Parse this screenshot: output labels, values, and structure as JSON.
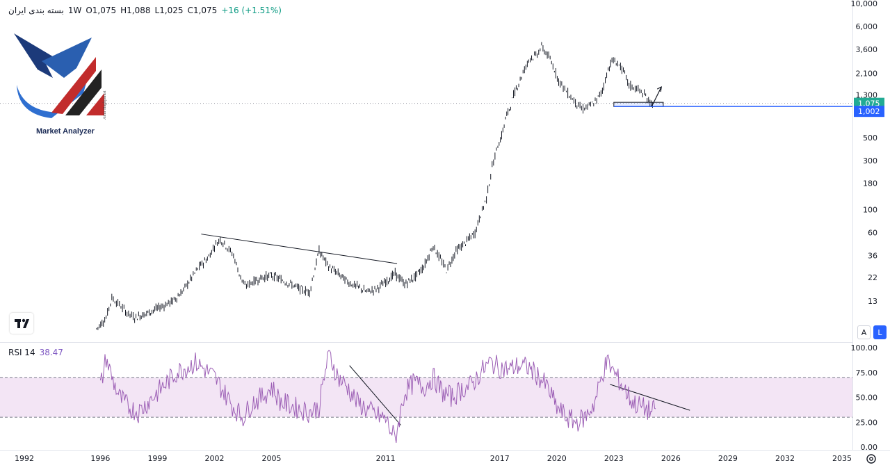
{
  "header": {
    "symbol": "بسته بندی ایران",
    "interval": "1W",
    "open": "O1,075",
    "high": "H1,088",
    "low": "L1,025",
    "close": "C1,075",
    "change": "+16 (+1.51%)"
  },
  "indicator": {
    "name": "RSI 14",
    "value": "38.47"
  },
  "logo": {
    "title": "Market Analyzer",
    "author": "Amir Haghparast"
  },
  "scale_buttons": {
    "auto": "A",
    "log": "L"
  },
  "icons": {
    "brand": "tradingview-logo-icon",
    "settings": "gear-icon"
  },
  "colors": {
    "price": "#131722",
    "last_price_bg": "#22ab94",
    "support_line": "#2962ff",
    "rsi_line": "#9c5fb5",
    "rsi_band": "#f3e5f5",
    "rsi_bound": "#787b86"
  },
  "chart_data": [
    {
      "type": "candlestick",
      "title": "بسته بندی ایران",
      "interval": "1W",
      "y_scale": "log",
      "ylim": [
        6,
        10000
      ],
      "xlim": [
        1992,
        2035.5
      ],
      "y_ticks": [
        "10,000",
        "6,000",
        "3,600",
        "2,100",
        "1,300",
        "500",
        "300",
        "180",
        "100",
        "60",
        "36",
        "22",
        "13"
      ],
      "x_ticks": [
        "1992",
        "1996",
        "1999",
        "2002",
        "2005",
        "2011",
        "2017",
        "2020",
        "2023",
        "2026",
        "2029",
        "2032",
        "2035"
      ],
      "last_price": {
        "value": 1075,
        "label": "1,075"
      },
      "support_level": {
        "value": 1002,
        "label": "1,002"
      },
      "trendlines": [
        {
          "from": [
            2001.3,
            58
          ],
          "to": [
            2011.6,
            30
          ]
        },
        {
          "from": [
            2023.0,
            1050
          ],
          "to": [
            2025.6,
            1050
          ]
        }
      ],
      "arrow": {
        "from": [
          2025.0,
          1010
        ],
        "to": [
          2025.5,
          1550
        ]
      },
      "price_series": [
        [
          1995.8,
          7
        ],
        [
          1996.3,
          9
        ],
        [
          1996.6,
          14
        ],
        [
          1997.0,
          12
        ],
        [
          1997.4,
          10
        ],
        [
          1997.8,
          9
        ],
        [
          1998.5,
          10
        ],
        [
          1999.2,
          11.5
        ],
        [
          1999.8,
          13
        ],
        [
          2000.3,
          16
        ],
        [
          2000.8,
          22
        ],
        [
          2001.2,
          28
        ],
        [
          2001.7,
          35
        ],
        [
          2002.0,
          45
        ],
        [
          2002.3,
          52
        ],
        [
          2002.6,
          45
        ],
        [
          2003.0,
          36
        ],
        [
          2003.3,
          24
        ],
        [
          2003.6,
          18
        ],
        [
          2004.0,
          20
        ],
        [
          2004.5,
          22
        ],
        [
          2005.0,
          23
        ],
        [
          2005.5,
          21
        ],
        [
          2006.0,
          19
        ],
        [
          2006.5,
          17
        ],
        [
          2007.0,
          16
        ],
        [
          2007.5,
          40
        ],
        [
          2008.0,
          28
        ],
        [
          2008.5,
          24
        ],
        [
          2009.0,
          20
        ],
        [
          2009.5,
          18
        ],
        [
          2010.0,
          16
        ],
        [
          2010.5,
          17
        ],
        [
          2011.0,
          20
        ],
        [
          2011.5,
          24
        ],
        [
          2012.0,
          19
        ],
        [
          2012.5,
          22
        ],
        [
          2013.0,
          28
        ],
        [
          2013.5,
          45
        ],
        [
          2013.8,
          35
        ],
        [
          2014.2,
          26
        ],
        [
          2014.7,
          40
        ],
        [
          2015.2,
          48
        ],
        [
          2015.7,
          60
        ],
        [
          2016.0,
          90
        ],
        [
          2016.3,
          130
        ],
        [
          2016.6,
          260
        ],
        [
          2016.9,
          420
        ],
        [
          2017.1,
          520
        ],
        [
          2017.3,
          760
        ],
        [
          2017.5,
          950
        ],
        [
          2017.8,
          1400
        ],
        [
          2018.0,
          1700
        ],
        [
          2018.3,
          2300
        ],
        [
          2018.6,
          3000
        ],
        [
          2018.9,
          3100
        ],
        [
          2019.2,
          3800
        ],
        [
          2019.5,
          3200
        ],
        [
          2019.8,
          2500
        ],
        [
          2020.1,
          1800
        ],
        [
          2020.5,
          1400
        ],
        [
          2020.9,
          1150
        ],
        [
          2021.3,
          950
        ],
        [
          2021.7,
          1000
        ],
        [
          2022.1,
          1150
        ],
        [
          2022.4,
          1450
        ],
        [
          2022.7,
          2300
        ],
        [
          2022.9,
          2800
        ],
        [
          2023.2,
          2650
        ],
        [
          2023.5,
          2200
        ],
        [
          2023.8,
          1600
        ],
        [
          2024.2,
          1500
        ],
        [
          2024.6,
          1300
        ],
        [
          2024.9,
          1100
        ],
        [
          2025.1,
          1075
        ]
      ]
    },
    {
      "type": "line",
      "title": "RSI 14",
      "ylim": [
        0,
        100
      ],
      "y_ticks": [
        "100.00",
        "75.00",
        "50.00",
        "25.00",
        "0.00"
      ],
      "band": [
        30,
        70
      ],
      "last_value": 38.47,
      "trendlines": [
        {
          "from": [
            2009.1,
            82
          ],
          "to": [
            2011.8,
            22
          ]
        },
        {
          "from": [
            2022.8,
            63
          ],
          "to": [
            2027.0,
            37
          ]
        }
      ],
      "series": [
        [
          1996.0,
          60
        ],
        [
          1996.3,
          90
        ],
        [
          1996.6,
          70
        ],
        [
          1997.0,
          50
        ],
        [
          1997.5,
          40
        ],
        [
          1998.0,
          35
        ],
        [
          1998.5,
          45
        ],
        [
          1999.0,
          55
        ],
        [
          1999.5,
          65
        ],
        [
          2000.0,
          75
        ],
        [
          2000.5,
          80
        ],
        [
          2001.0,
          85
        ],
        [
          2001.5,
          78
        ],
        [
          2002.0,
          70
        ],
        [
          2002.5,
          55
        ],
        [
          2003.0,
          40
        ],
        [
          2003.5,
          30
        ],
        [
          2004.0,
          45
        ],
        [
          2004.5,
          50
        ],
        [
          2005.0,
          60
        ],
        [
          2005.5,
          45
        ],
        [
          2006.0,
          42
        ],
        [
          2006.5,
          38
        ],
        [
          2007.0,
          35
        ],
        [
          2007.5,
          40
        ],
        [
          2008.0,
          95
        ],
        [
          2008.5,
          70
        ],
        [
          2009.0,
          60
        ],
        [
          2009.5,
          45
        ],
        [
          2010.0,
          38
        ],
        [
          2010.5,
          32
        ],
        [
          2011.0,
          28
        ],
        [
          2011.5,
          8
        ],
        [
          2012.0,
          55
        ],
        [
          2012.5,
          65
        ],
        [
          2013.0,
          60
        ],
        [
          2013.5,
          70
        ],
        [
          2014.0,
          55
        ],
        [
          2014.5,
          50
        ],
        [
          2015.0,
          58
        ],
        [
          2015.5,
          62
        ],
        [
          2016.0,
          75
        ],
        [
          2016.5,
          85
        ],
        [
          2017.0,
          80
        ],
        [
          2017.5,
          78
        ],
        [
          2018.0,
          82
        ],
        [
          2018.5,
          80
        ],
        [
          2019.0,
          72
        ],
        [
          2019.5,
          60
        ],
        [
          2020.0,
          40
        ],
        [
          2020.5,
          30
        ],
        [
          2021.0,
          25
        ],
        [
          2021.5,
          30
        ],
        [
          2022.0,
          45
        ],
        [
          2022.5,
          80
        ],
        [
          2022.7,
          85
        ],
        [
          2023.0,
          75
        ],
        [
          2023.5,
          60
        ],
        [
          2024.0,
          45
        ],
        [
          2024.5,
          40
        ],
        [
          2025.0,
          35
        ],
        [
          2025.2,
          38.47
        ]
      ]
    }
  ]
}
